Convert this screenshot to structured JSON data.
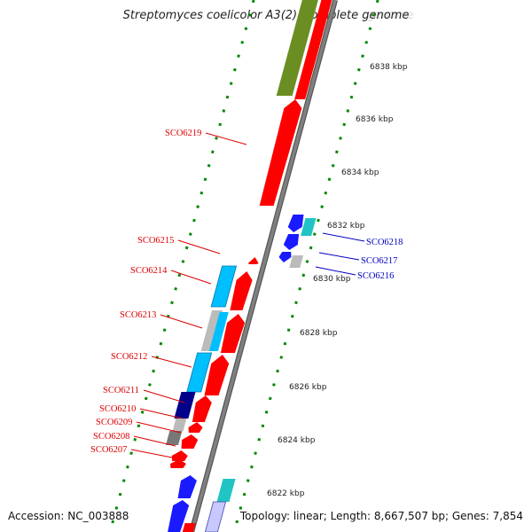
{
  "header": {
    "title": "Streptomyces coelicolor A3(2), complete genome",
    "watermark": "genome"
  },
  "footer": {
    "accession": "Accession: NC_003888",
    "summary": "Topology: linear; Length: 8,667,507 bp; Genes: 7,854"
  },
  "colors": {
    "forward_label": "#dd0000",
    "reverse_label": "#0000c0",
    "backbone": "#808080",
    "tick": "#008800",
    "gene_red": "#ff0000",
    "gene_olive": "#6b8e23",
    "gene_cyan": "#00bfff",
    "gene_navy": "#00008b",
    "gene_blue": "#1a1aff",
    "gene_teal": "#20c4c4",
    "gene_gray": "#bbbbbb",
    "gene_dark_gray": "#777777"
  },
  "scale": {
    "unit": "kbp",
    "ticks": [
      "6838 kbp",
      "6836 kbp",
      "6834 kbp",
      "6832 kbp",
      "6830 kbp",
      "6828 kbp",
      "6826 kbp",
      "6824 kbp",
      "6822 kbp"
    ]
  },
  "labels": {
    "forward": [
      "SCO6219",
      "SCO6215",
      "SCO6214",
      "SCO6213",
      "SCO6212",
      "SCO6211",
      "SCO6210",
      "SCO6209",
      "SCO6208",
      "SCO6207"
    ],
    "reverse": [
      "SCO6218",
      "SCO6217",
      "SCO6216"
    ]
  }
}
